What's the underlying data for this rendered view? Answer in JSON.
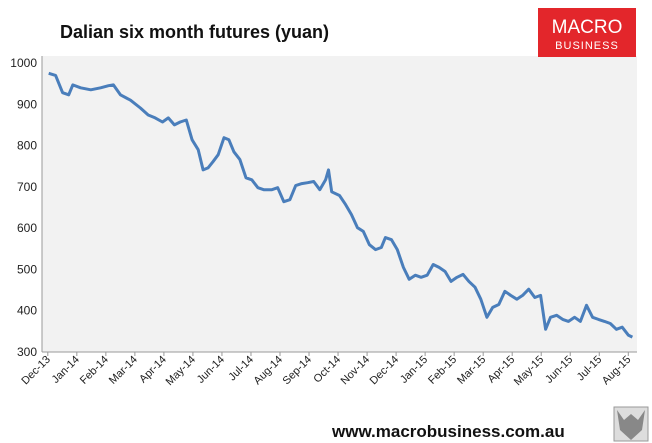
{
  "chart_data": {
    "type": "line",
    "title": "Dalian six month futures (yuan)",
    "xlim": [
      -0.2,
      20.3
    ],
    "xticks": [
      {
        "value": 0,
        "label": "Dec-13"
      },
      {
        "value": 1,
        "label": "Jan-14"
      },
      {
        "value": 2,
        "label": "Feb-14"
      },
      {
        "value": 3,
        "label": "Mar-14"
      },
      {
        "value": 4,
        "label": "Apr-14"
      },
      {
        "value": 5,
        "label": "May-14"
      },
      {
        "value": 6,
        "label": "Jun-14"
      },
      {
        "value": 7,
        "label": "Jul-14"
      },
      {
        "value": 8,
        "label": "Aug-14"
      },
      {
        "value": 9,
        "label": "Sep-14"
      },
      {
        "value": 10,
        "label": "Oct-14"
      },
      {
        "value": 11,
        "label": "Nov-14"
      },
      {
        "value": 12,
        "label": "Dec-14"
      },
      {
        "value": 13,
        "label": "Jan-15"
      },
      {
        "value": 14,
        "label": "Feb-15"
      },
      {
        "value": 15,
        "label": "Mar-15"
      },
      {
        "value": 16,
        "label": "Apr-15"
      },
      {
        "value": 17,
        "label": "May-15"
      },
      {
        "value": 18,
        "label": "Jun-15"
      },
      {
        "value": 19,
        "label": "Jul-15"
      },
      {
        "value": 20,
        "label": "Aug-15"
      }
    ],
    "ylim": [
      300,
      1000
    ],
    "yticks": [
      300,
      400,
      500,
      600,
      700,
      800,
      900,
      1000
    ],
    "grid": false,
    "series": [
      {
        "color": "#4a7ebb",
        "x": [
          0.03,
          0.27,
          0.51,
          0.72,
          0.86,
          1.13,
          1.48,
          1.82,
          2.09,
          2.26,
          2.5,
          2.85,
          3.19,
          3.46,
          3.7,
          3.95,
          4.15,
          4.36,
          4.56,
          4.77,
          4.97,
          5.18,
          5.35,
          5.52,
          5.69,
          5.87,
          6.07,
          6.24,
          6.41,
          6.62,
          6.83,
          7.03,
          7.24,
          7.44,
          7.72,
          7.92,
          8.13,
          8.34,
          8.54,
          8.75,
          8.95,
          9.16,
          9.37,
          9.57,
          9.67,
          9.78,
          10.05,
          10.26,
          10.46,
          10.67,
          10.87,
          11.08,
          11.29,
          11.49,
          11.63,
          11.84,
          12.04,
          12.25,
          12.45,
          12.66,
          12.86,
          13.07,
          13.28,
          13.48,
          13.69,
          13.89,
          14.1,
          14.31,
          14.51,
          14.72,
          14.92,
          15.13,
          15.33,
          15.54,
          15.75,
          15.95,
          16.16,
          16.36,
          16.57,
          16.78,
          16.98,
          17.15,
          17.32,
          17.53,
          17.74,
          17.94,
          18.15,
          18.35,
          18.56,
          18.77,
          18.97,
          19.18,
          19.38,
          19.59,
          19.79,
          20.0,
          20.14
        ],
        "values": [
          975,
          970,
          928,
          923,
          947,
          940,
          935,
          940,
          945,
          947,
          923,
          910,
          891,
          874,
          867,
          857,
          867,
          850,
          857,
          862,
          814,
          790,
          741,
          746,
          761,
          778,
          819,
          814,
          785,
          766,
          722,
          717,
          698,
          693,
          693,
          698,
          664,
          669,
          703,
          708,
          710,
          713,
          693,
          717,
          741,
          688,
          679,
          657,
          633,
          601,
          592,
          560,
          548,
          553,
          577,
          572,
          548,
          505,
          476,
          486,
          481,
          486,
          512,
          505,
          495,
          471,
          481,
          488,
          471,
          457,
          428,
          384,
          408,
          415,
          447,
          437,
          428,
          437,
          452,
          432,
          437,
          355,
          384,
          389,
          379,
          374,
          384,
          374,
          413,
          384,
          379,
          374,
          369,
          355,
          360,
          341,
          336
        ]
      }
    ]
  },
  "logo": {
    "line1": "MACRO",
    "line2": "BUSINESS"
  },
  "footer": "www.macrobusiness.com.au"
}
